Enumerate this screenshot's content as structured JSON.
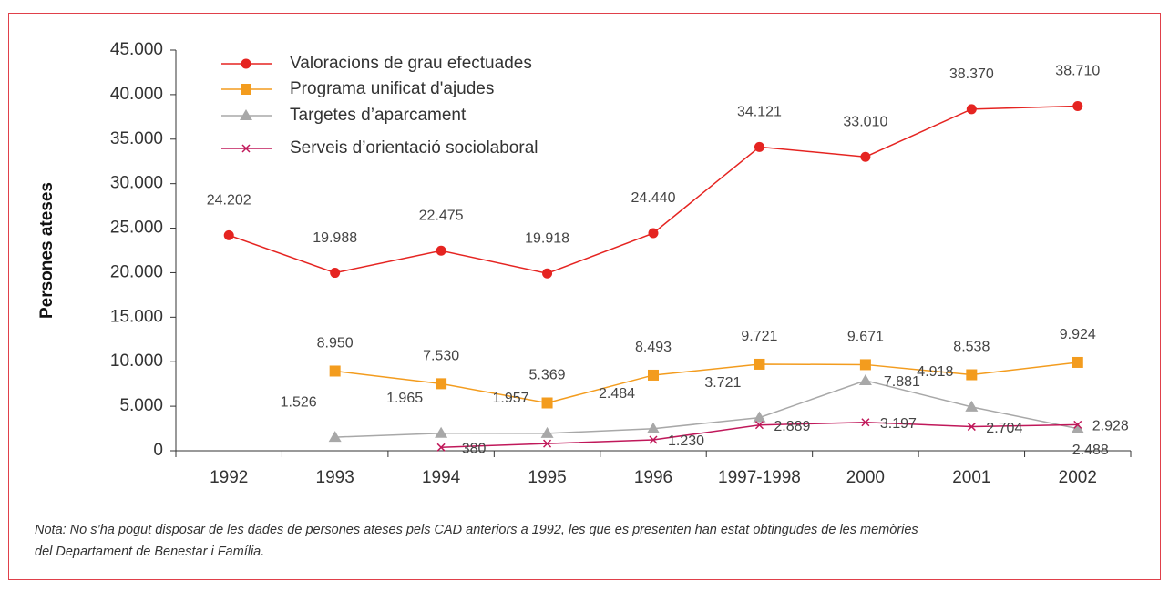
{
  "chart_data": {
    "type": "line",
    "ylabel": "Persones ateses",
    "categories": [
      "1992",
      "1993",
      "1994",
      "1995",
      "1996",
      "1997-1998",
      "2000",
      "2001",
      "2002"
    ],
    "series": [
      {
        "name": "Valoracions de grau efectuades",
        "color": "#e52421",
        "marker": "circle",
        "values": [
          24202,
          19988,
          22475,
          19918,
          24440,
          34121,
          33010,
          38370,
          38710
        ],
        "value_labels": [
          "24.202",
          "19.988",
          "22.475",
          "19.918",
          "24.440",
          "34.121",
          "33.010",
          "38.370",
          "38.710"
        ]
      },
      {
        "name": "Programa unificat d'ajudes",
        "color": "#f39c1e",
        "marker": "square",
        "values": [
          null,
          8950,
          7530,
          5369,
          8493,
          9721,
          9671,
          8538,
          9924
        ],
        "value_labels": [
          null,
          "8.950",
          "7.530",
          "5.369",
          "8.493",
          "9.721",
          "9.671",
          "8.538",
          "9.924"
        ]
      },
      {
        "name": "Targetes d’aparcament",
        "color": "#a8a8a8",
        "marker": "triangle",
        "values": [
          null,
          1526,
          1965,
          1957,
          2484,
          3721,
          7881,
          4918,
          2488
        ],
        "value_labels": [
          null,
          "1.526",
          "1.965",
          "1.957",
          "2.484",
          "3.721",
          "7.881",
          "4.918",
          "2.488"
        ]
      },
      {
        "name": "Serveis d’orientació sociolaboral",
        "color": "#c0185a",
        "marker": "x",
        "values": [
          null,
          null,
          380,
          805,
          1230,
          2889,
          3197,
          2704,
          2928
        ],
        "value_labels": [
          null,
          null,
          "380",
          null,
          "1.230",
          "2.889",
          "3.197",
          "2.704",
          "2.928"
        ]
      }
    ],
    "ylim": [
      0,
      45000
    ],
    "yticks": [
      0,
      {
        "value": 5000,
        "label": "5.000"
      },
      {
        "value": 10000,
        "label": "10.000"
      },
      {
        "value": 15000,
        "label": "15.000"
      },
      {
        "value": 20000,
        "label": "20.000"
      },
      {
        "value": 25000,
        "label": "25.000"
      },
      {
        "value": 30000,
        "label": "30.000"
      },
      {
        "value": 35000,
        "label": "35.000"
      },
      {
        "value": 40000,
        "label": "40.000"
      },
      {
        "value": 45000,
        "label": "45.000"
      }
    ],
    "grid": false,
    "legend": "top-left",
    "note": [
      "Nota: No s’ha pogut disposar de les dades de persones ateses pels CAD anteriors a 1992, les que es presenten han estat obtingudes de les memòries",
      "del Departament de Benestar i Família."
    ]
  }
}
